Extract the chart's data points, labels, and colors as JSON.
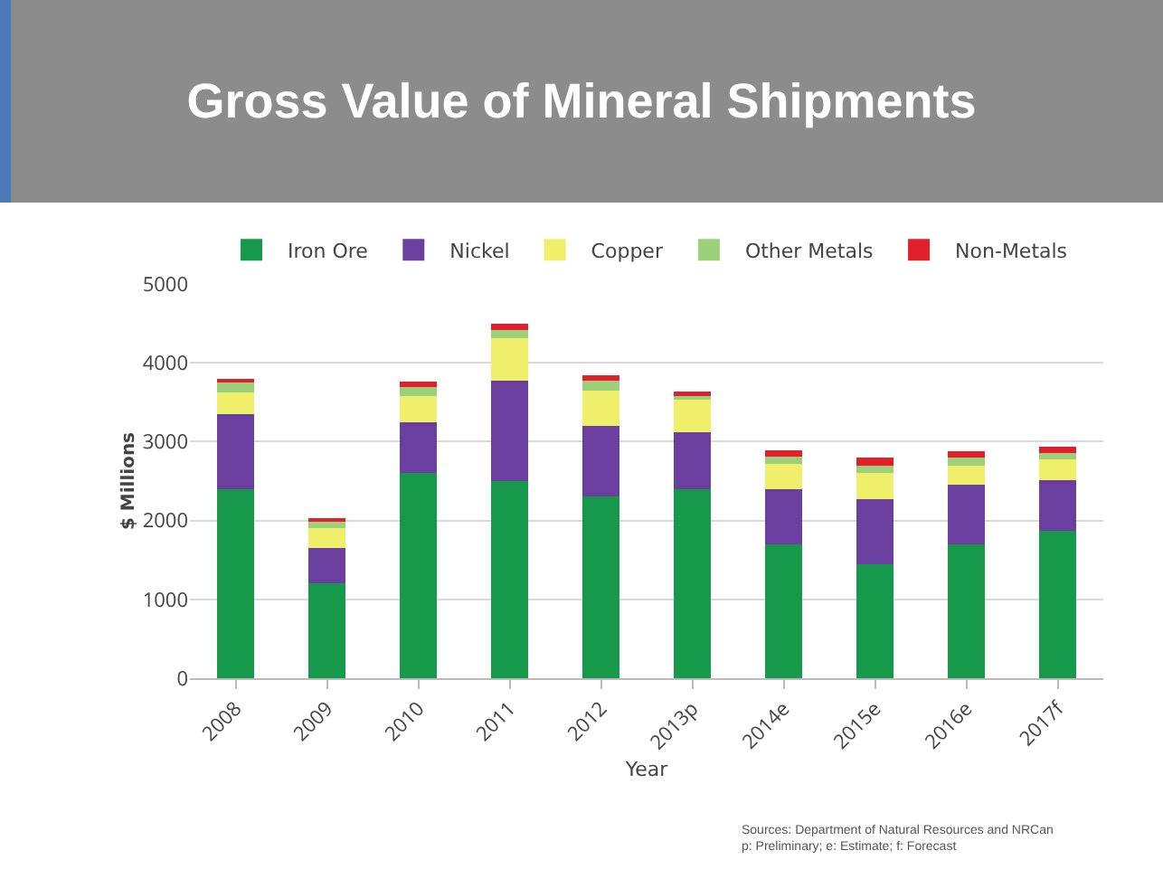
{
  "chart_data": {
    "type": "bar",
    "title": "Gross Value of Mineral Shipments",
    "xlabel": "Year",
    "ylabel": "$ Millions",
    "categories": [
      "2008",
      "2009",
      "2010",
      "2011",
      "2012",
      "2013p",
      "2014e",
      "2015e",
      "2016e",
      "2017f"
    ],
    "stacked": true,
    "series": [
      {
        "name": "Iron Ore",
        "color": "#17994b",
        "values": [
          2400,
          1200,
          2600,
          2500,
          2300,
          2400,
          1700,
          1450,
          1700,
          1870
        ]
      },
      {
        "name": "Nickel",
        "color": "#6b3fa0",
        "values": [
          950,
          450,
          650,
          1270,
          900,
          720,
          700,
          820,
          750,
          640
        ]
      },
      {
        "name": "Copper",
        "color": "#f0ef6b",
        "values": [
          270,
          250,
          330,
          540,
          450,
          410,
          320,
          330,
          250,
          270
        ]
      },
      {
        "name": "Other Metals",
        "color": "#9dd07a",
        "values": [
          130,
          80,
          110,
          110,
          120,
          50,
          90,
          100,
          100,
          70
        ]
      },
      {
        "name": "Non-Metals",
        "color": "#e0202a",
        "values": [
          50,
          50,
          70,
          70,
          70,
          50,
          80,
          100,
          80,
          90
        ]
      }
    ],
    "ylim": [
      0,
      5000
    ],
    "yticks": [
      0,
      1000,
      2000,
      3000,
      4000,
      5000
    ],
    "grid": "y",
    "legend": "top",
    "annotations": [
      "Sources: Department of Natural Resources and NRCan",
      "p: Preliminary; e: Estimate; f: Forecast"
    ]
  }
}
